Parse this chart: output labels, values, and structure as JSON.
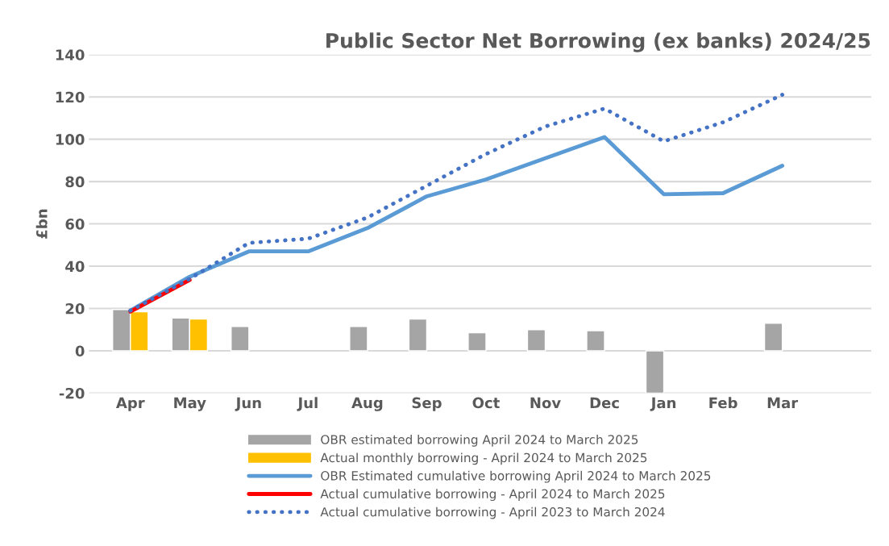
{
  "chart_data": {
    "type": "bar",
    "title": "Public Sector Net Borrowing (ex banks) 2024/25",
    "ylabel": "£bn",
    "categories": [
      "Apr",
      "May",
      "Jun",
      "Jul",
      "Aug",
      "Sep",
      "Oct",
      "Nov",
      "Dec",
      "Jan",
      "Feb",
      "Mar",
      null
    ],
    "series": [
      {
        "name": "OBR estimated borrowing April 2024 to March 2025",
        "color": "#a5a5a5",
        "values": [
          19.5,
          15.5,
          11.5,
          null,
          11.5,
          15,
          8.5,
          10,
          9.5,
          -20,
          null,
          13,
          null
        ]
      },
      {
        "name": "Actual monthly borrowing - April 2024 to March 2025",
        "color": "#ffc000",
        "values": [
          18.5,
          15,
          null,
          null,
          null,
          null,
          null,
          null,
          null,
          null,
          null,
          null,
          null
        ]
      },
      {
        "name": "OBR Estimated cumulative borrowing April 2024 to March 2025",
        "type": "line",
        "color": "#5b9bd5",
        "line_style": "solid",
        "values": [
          19,
          35,
          47,
          47,
          58,
          73,
          81,
          91,
          101,
          74,
          74.5,
          87.5,
          null
        ]
      },
      {
        "name": "Actual cumulative borrowing - April 2024 to March 2025",
        "type": "line",
        "color": "#ff0000",
        "line_style": "solid",
        "values": [
          18.5,
          33.5,
          null,
          null,
          null,
          null,
          null,
          null,
          null,
          null,
          null,
          null,
          null
        ]
      },
      {
        "name": "Actual cumulative borrowing - April 2023 to March 2024",
        "type": "line",
        "color": "#4472c4",
        "line_style": "dotted",
        "values": [
          19,
          34,
          51,
          53,
          63,
          78,
          93,
          106,
          114.5,
          99,
          108,
          121,
          null
        ]
      }
    ],
    "ylim": [
      -20,
      140
    ],
    "yticks": [
      -20,
      0,
      20,
      40,
      60,
      80,
      100,
      120,
      140
    ],
    "grid": "y",
    "legend": "bottom"
  }
}
